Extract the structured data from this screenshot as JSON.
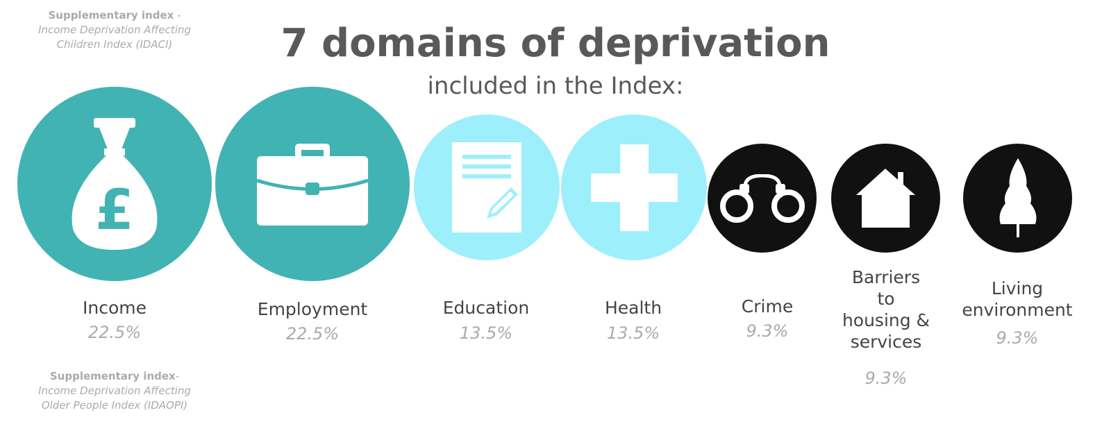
{
  "colors": {
    "income_employment": "#41b3b3",
    "education_health": "#9eeffc",
    "other": "#111111",
    "title": "#595959",
    "muted": "#aaaaaa"
  },
  "top_note": {
    "bold": "Supplementary index",
    "sep": " -",
    "italic1": "Income Deprivation Affecting",
    "italic2": "Children Index (IDACI)"
  },
  "bottom_note": {
    "bold": "Supplementary index",
    "sep": "-",
    "italic1": "Income Deprivation Affecting",
    "italic2": "Older People Index (IDAOPI)"
  },
  "title": "7 domains of deprivation",
  "subtitle": "included in the Index:",
  "domains": [
    {
      "label": "Income",
      "weight": "22.5%",
      "icon": "money-bag-pound-icon"
    },
    {
      "label": "Employment",
      "weight": "22.5%",
      "icon": "briefcase-icon"
    },
    {
      "label": "Education",
      "weight": "13.5%",
      "icon": "document-pencil-icon"
    },
    {
      "label": "Health",
      "weight": "13.5%",
      "icon": "cross-icon"
    },
    {
      "label": "Crime",
      "weight": "9.3%",
      "icon": "handcuffs-icon"
    },
    {
      "label_lines": [
        "Barriers",
        "to",
        "housing &",
        "services"
      ],
      "weight": "9.3%",
      "icon": "house-icon"
    },
    {
      "label_lines": [
        "Living",
        "environment"
      ],
      "weight": "9.3%",
      "icon": "tree-icon"
    }
  ]
}
